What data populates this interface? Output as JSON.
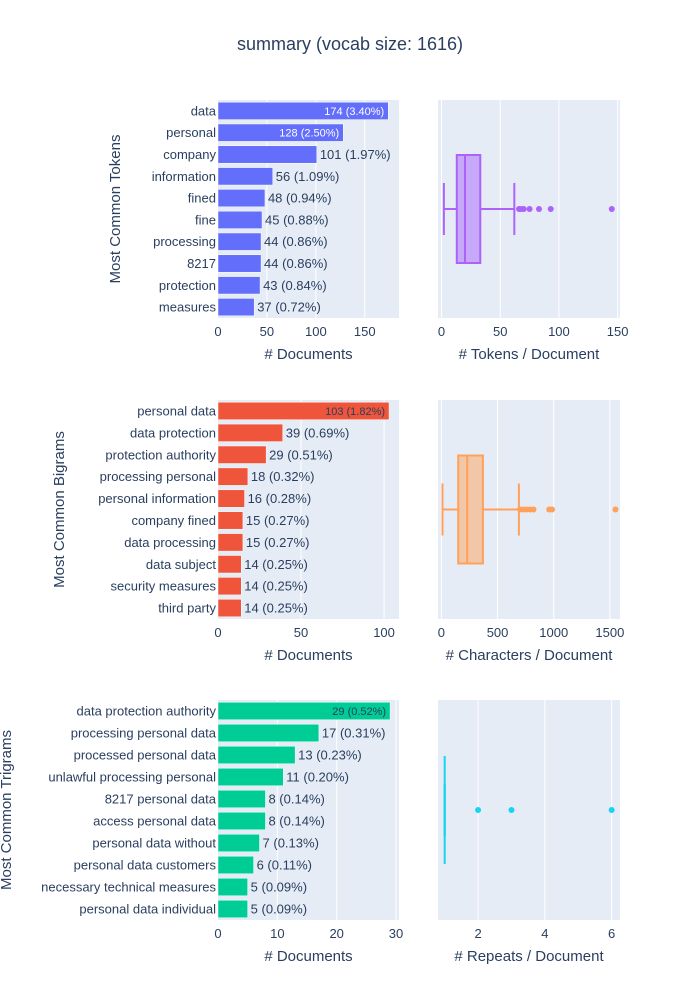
{
  "title": "summary (vocab size: 1616)",
  "colors": {
    "tokens": "#636efa",
    "bigrams": "#ef553b",
    "trigrams": "#00cc96",
    "box_tokens": "#ab63fa",
    "box_chars": "#ffa15a",
    "box_repeats": "#19d3f3",
    "plot_bg": "#e5ecf6",
    "grid": "#ffffff",
    "text": "#2a3f5f"
  },
  "chart_data": [
    {
      "type": "bar",
      "orientation": "horizontal",
      "ylabel": "Most Common Tokens",
      "xlabel": "# Documents",
      "xlim": [
        0,
        185
      ],
      "xticks": [
        0,
        50,
        100,
        150
      ],
      "categories": [
        "data",
        "personal",
        "company",
        "information",
        "fined",
        "fine",
        "processing",
        "8217",
        "protection",
        "measures"
      ],
      "values": [
        174,
        128,
        101,
        56,
        48,
        45,
        44,
        44,
        43,
        37
      ],
      "labels": [
        "174 (3.40%)",
        "128 (2.50%)",
        "101 (1.97%)",
        "56 (1.09%)",
        "48 (0.94%)",
        "45 (0.88%)",
        "44 (0.86%)",
        "44 (0.86%)",
        "43 (0.84%)",
        "37 (0.72%)"
      ]
    },
    {
      "type": "box",
      "xlabel": "# Tokens / Document",
      "xlim": [
        -3,
        152
      ],
      "xticks": [
        0,
        50,
        100,
        150
      ],
      "min": 2,
      "q1": 13,
      "median": 20,
      "q3": 33,
      "max": 62,
      "outliers": [
        66,
        68,
        70,
        75,
        83,
        93,
        145
      ]
    },
    {
      "type": "bar",
      "orientation": "horizontal",
      "ylabel": "Most Common Bigrams",
      "xlabel": "# Documents",
      "xlim": [
        0,
        109
      ],
      "xticks": [
        0,
        50,
        100
      ],
      "categories": [
        "personal data",
        "data protection",
        "protection authority",
        "processing personal",
        "personal information",
        "company fined",
        "data processing",
        "data subject",
        "security measures",
        "third party"
      ],
      "values": [
        103,
        39,
        29,
        18,
        16,
        15,
        15,
        14,
        14,
        14
      ],
      "labels": [
        "103 (1.82%)",
        "39 (0.69%)",
        "29 (0.51%)",
        "18 (0.32%)",
        "16 (0.28%)",
        "15 (0.27%)",
        "15 (0.27%)",
        "14 (0.25%)",
        "14 (0.25%)",
        "14 (0.25%)"
      ]
    },
    {
      "type": "box",
      "xlabel": "# Characters / Document",
      "xlim": [
        -30,
        1590
      ],
      "xticks": [
        0,
        500,
        1000,
        1500
      ],
      "min": 10,
      "q1": 150,
      "median": 230,
      "q3": 370,
      "max": 690,
      "outliers": [
        700,
        730,
        760,
        790,
        820,
        960,
        985,
        1550
      ]
    },
    {
      "type": "bar",
      "orientation": "horizontal",
      "ylabel": "Most Common Trigrams",
      "xlabel": "# Documents",
      "xlim": [
        0,
        30.5
      ],
      "xticks": [
        0,
        10,
        20,
        30
      ],
      "categories": [
        "data protection authority",
        "processing personal data",
        "processed personal data",
        "unlawful processing personal",
        "8217 personal data",
        "access personal data",
        "personal data without",
        "personal data customers",
        "necessary technical measures",
        "personal data individual"
      ],
      "values": [
        29,
        17,
        13,
        11,
        8,
        8,
        7,
        6,
        5,
        5
      ],
      "labels": [
        "29 (0.52%)",
        "17 (0.31%)",
        "13 (0.23%)",
        "11 (0.20%)",
        "8 (0.14%)",
        "8 (0.14%)",
        "7 (0.13%)",
        "6 (0.11%)",
        "5 (0.09%)",
        "5 (0.09%)"
      ]
    },
    {
      "type": "box",
      "xlabel": "# Repeats / Document",
      "xlim": [
        0.8,
        6.25
      ],
      "xticks": [
        2,
        4,
        6
      ],
      "min": 1,
      "q1": 1,
      "median": 1,
      "q3": 1,
      "max": 1,
      "outliers": [
        2,
        3,
        6
      ]
    }
  ]
}
